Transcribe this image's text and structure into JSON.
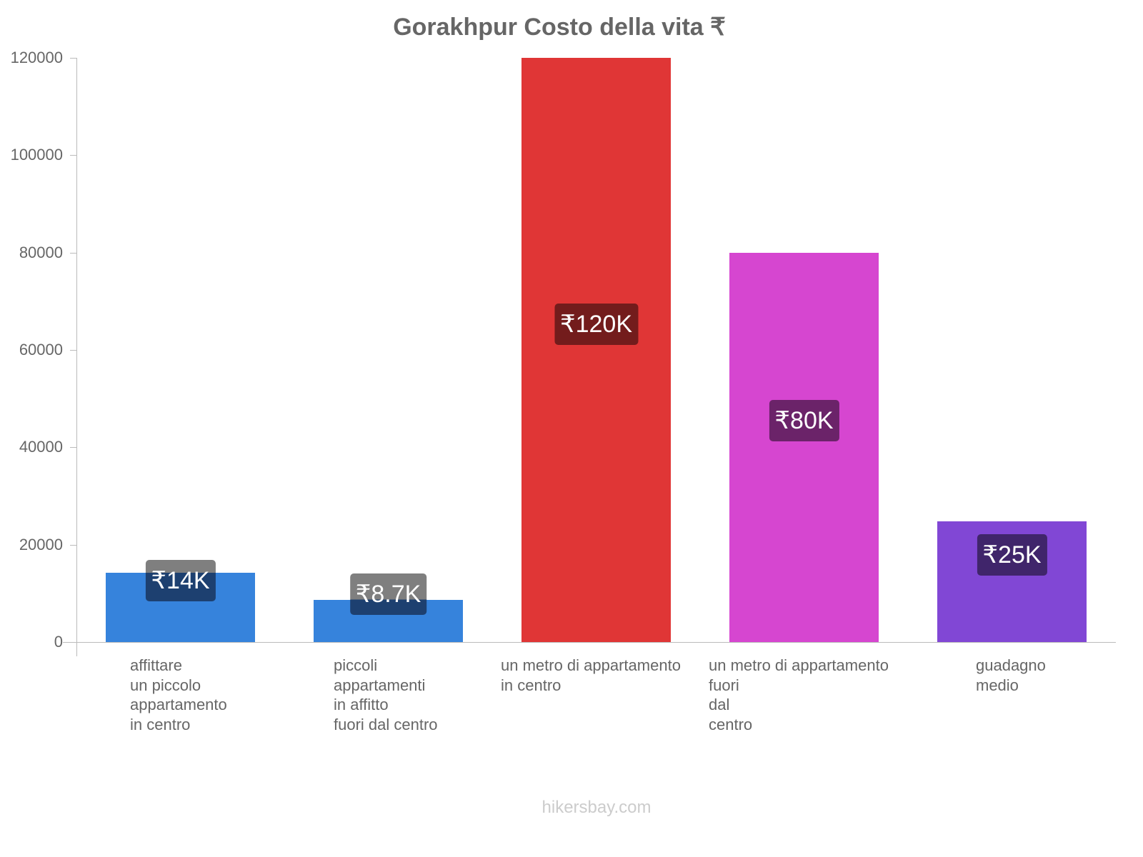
{
  "chart_data": {
    "type": "bar",
    "title": "Gorakhpur Costo della vita ₹",
    "xlabel": "",
    "ylabel": "",
    "ylim": [
      0,
      120000
    ],
    "yticks": [
      0,
      20000,
      40000,
      60000,
      80000,
      100000,
      120000
    ],
    "ytick_labels": [
      "0",
      "20000",
      "40000",
      "60000",
      "80000",
      "100000",
      "120000"
    ],
    "grid": false,
    "legend": null,
    "categories": [
      "affittare un piccolo appartamento in centro",
      "piccoli appartamenti in affitto fuori dal centro",
      "un metro di appartamento in centro",
      "un metro di appartamento fuori dal centro",
      "guadagno medio"
    ],
    "category_label_lines": [
      "affittare\nun piccolo\nappartamento\nin centro",
      "piccoli\nappartamenti\nin affitto\nfuori dal centro",
      "un metro di appartamento\nin centro",
      "un metro di appartamento\nfuori\ndal\ncentro",
      "guadagno\nmedio"
    ],
    "values": [
      14200,
      8700,
      120000,
      80000,
      24800
    ],
    "value_labels": [
      "₹14K",
      "₹8.7K",
      "₹120K",
      "₹80K",
      "₹25K"
    ],
    "bar_colors": [
      "#3683dc",
      "#3683dc",
      "#e03636",
      "#d646d0",
      "#8147d5"
    ],
    "badge_colors": [
      "#1d4070",
      "#1d4070",
      "#731c1c",
      "#6b2369",
      "#40256b"
    ]
  },
  "footer": {
    "watermark": "hikersbay.com"
  }
}
